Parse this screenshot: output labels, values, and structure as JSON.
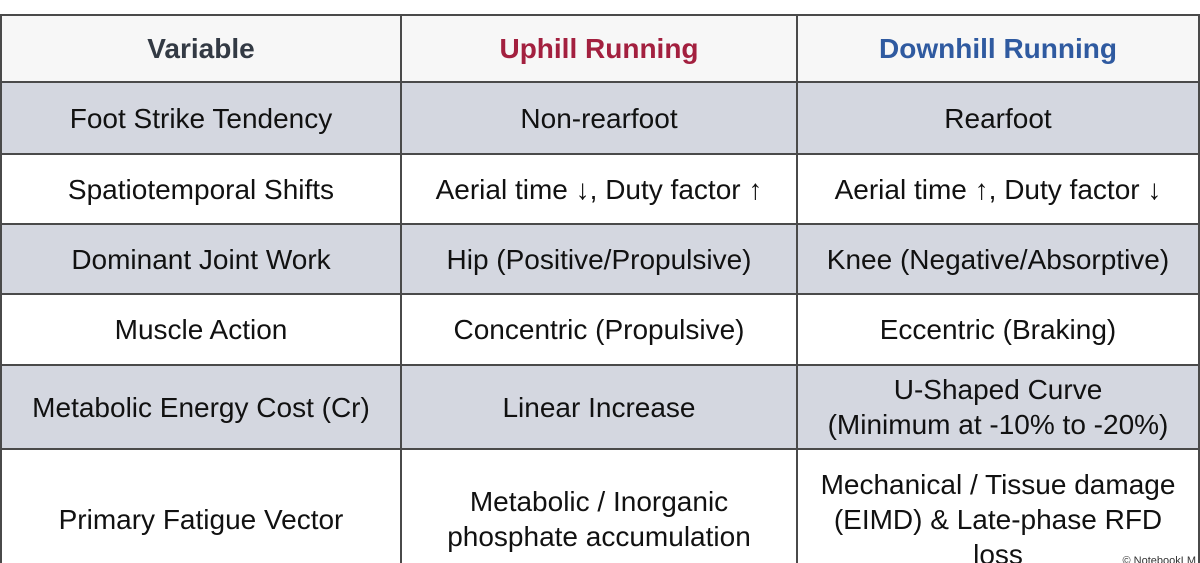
{
  "table": {
    "header": [
      "Variable",
      "Uphill Running",
      "Downhill Running"
    ],
    "rows": [
      [
        "Foot Strike Tendency",
        "Non-rearfoot",
        "Rearfoot"
      ],
      [
        "Spatiotemporal Shifts",
        "Aerial time ↓, Duty factor ↑",
        "Aerial time ↑, Duty factor ↓"
      ],
      [
        "Dominant Joint Work",
        "Hip (Positive/Propulsive)",
        "Knee (Negative/Absorptive)"
      ],
      [
        "Muscle Action",
        "Concentric (Propulsive)",
        "Eccentric (Braking)"
      ],
      [
        "Metabolic Energy Cost (Cr)",
        "Linear Increase",
        [
          "U-Shaped Curve",
          "(Minimum at -10% to -20%)"
        ]
      ],
      [
        "Primary Fatigue Vector",
        [
          "Metabolic / Inorganic",
          "phosphate accumulation"
        ],
        [
          "Mechanical / Tissue damage",
          "(EIMD) & Late-phase RFD",
          "loss"
        ]
      ]
    ]
  },
  "watermark": "© NotebookLM"
}
